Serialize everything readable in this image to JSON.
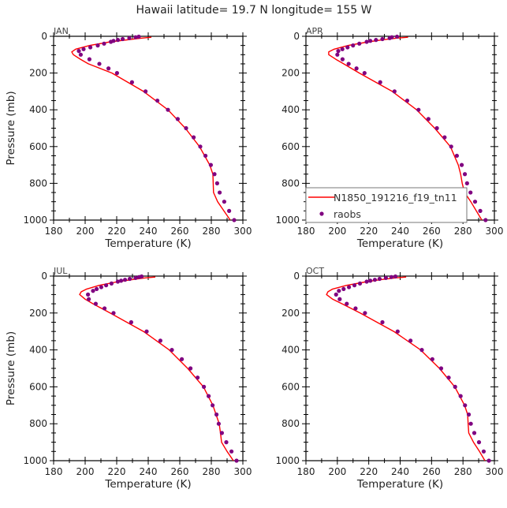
{
  "chart_data": {
    "type": "line",
    "title": "Hawaii  latitude= 19.7 N longitude= 155 W",
    "xlabel": "Temperature (K)",
    "ylabel": "Pressure (mb)",
    "xlim": [
      180,
      300
    ],
    "ylim": [
      0,
      1000
    ],
    "y_inverted": true,
    "xticks": [
      "180",
      "200",
      "220",
      "240",
      "260",
      "280",
      "300"
    ],
    "yticks": [
      "0",
      "200",
      "400",
      "600",
      "800",
      "1000"
    ],
    "legend": {
      "placement": "bottom-left of APR panel",
      "entries": [
        "N1850_191216_f19_tn11",
        "raobs"
      ]
    },
    "colors": {
      "model": "#ff0000",
      "raobs": "#800080"
    },
    "model_pressure": [
      5,
      10,
      20,
      30,
      50,
      70,
      85,
      100,
      125,
      150,
      200,
      300,
      400,
      500,
      600,
      700,
      750,
      800,
      850,
      900,
      950,
      1000
    ],
    "obs_pressure": [
      2,
      5,
      10,
      15,
      20,
      25,
      30,
      40,
      50,
      60,
      70,
      80,
      100,
      125,
      150,
      175,
      200,
      250,
      300,
      350,
      400,
      450,
      500,
      550,
      600,
      650,
      700,
      750,
      800,
      850,
      900,
      950,
      1000
    ],
    "panels": [
      {
        "label": "JAN",
        "model": [
          242,
          236,
          226,
          216,
          203,
          194,
          191.5,
          192.5,
          197,
          202,
          217,
          237,
          252.5,
          263.5,
          272.5,
          279,
          281,
          281.2,
          281.4,
          284,
          288,
          292
        ],
        "raobs": [
          234,
          232,
          228,
          223.8,
          220.8,
          218,
          216.3,
          212,
          208,
          203.3,
          199,
          196,
          197.2,
          202.7,
          209,
          214.8,
          220.2,
          229.7,
          238.3,
          245.8,
          252.5,
          258.7,
          264,
          268.8,
          273,
          276.3,
          279.7,
          282,
          283.7,
          285.3,
          288.2,
          291.3,
          294.5
        ]
      },
      {
        "label": "APR",
        "model": [
          245,
          238,
          228,
          220,
          207,
          198,
          194.5,
          194.5,
          199,
          204,
          214,
          235,
          250.5,
          262,
          272,
          277,
          278.5,
          279.5,
          281,
          285,
          288.5,
          292
        ],
        "raobs": [
          238,
          234.7,
          233.3,
          228.7,
          224.6,
          221,
          218.7,
          214,
          210,
          206.5,
          203.2,
          200.6,
          200,
          203.3,
          207.2,
          212.2,
          217.3,
          227.3,
          236.4,
          244.5,
          251.7,
          258,
          263.4,
          268.3,
          272.5,
          276.1,
          279.2,
          281.2,
          282.6,
          284.8,
          287.7,
          291,
          294.4
        ]
      },
      {
        "label": "JUL",
        "model": [
          244.5,
          238,
          229,
          221,
          209,
          201,
          197.5,
          196.5,
          200,
          205,
          215.8,
          237,
          253.3,
          265,
          275,
          281,
          283,
          285,
          285.8,
          286.5,
          290,
          294
        ],
        "raobs": [
          235.8,
          234.2,
          232,
          228.3,
          225.3,
          222.8,
          220.7,
          216.7,
          213.3,
          210.2,
          207.3,
          205,
          201.8,
          202.3,
          206.7,
          212.3,
          218,
          229.2,
          239,
          247.7,
          255,
          261.3,
          266.8,
          271.3,
          275.3,
          278.3,
          280.8,
          283.3,
          284.7,
          286.7,
          289.5,
          292.8,
          296
        ]
      },
      {
        "label": "OCT",
        "model": [
          243.8,
          237,
          227,
          219,
          206,
          197,
          194,
          193.1,
          197,
          203,
          214.5,
          236,
          253,
          265,
          274.8,
          281,
          283,
          283.3,
          283.7,
          286.7,
          290.5,
          294
        ],
        "raobs": [
          237,
          234.4,
          230.9,
          226.9,
          223.9,
          221,
          218.7,
          214.4,
          210.9,
          207.4,
          204,
          201,
          199.2,
          201.5,
          206,
          211.6,
          217.6,
          228.7,
          238.4,
          246.6,
          253.8,
          260.5,
          266.1,
          270.9,
          275,
          278.5,
          281.3,
          283.7,
          285,
          287.2,
          290.2,
          293.2,
          296.5
        ]
      }
    ]
  }
}
